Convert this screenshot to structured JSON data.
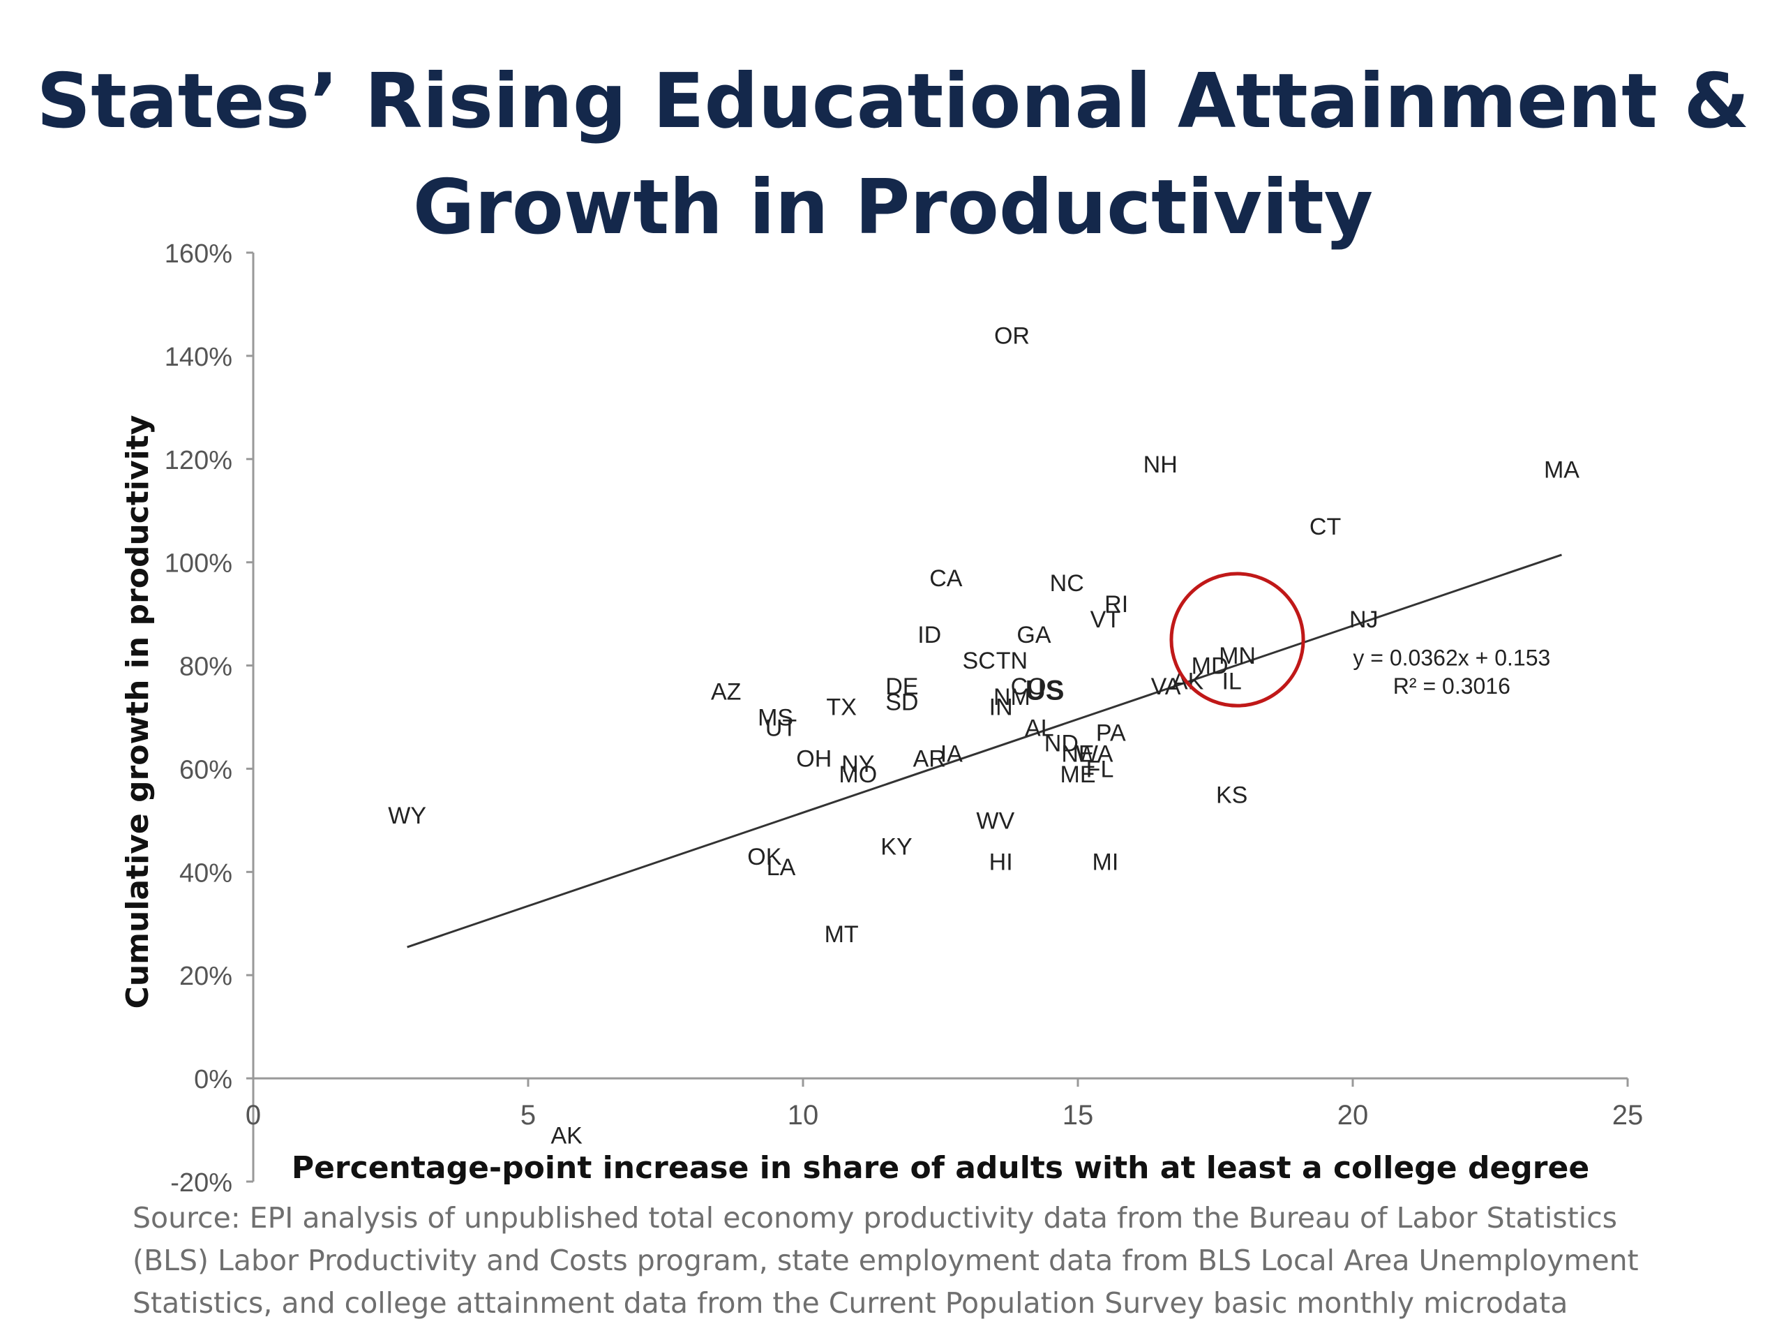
{
  "chart_data": {
    "type": "scatter",
    "title": "States’ Rising Educational Attainment & Growth in Productivity",
    "title_lines": [
      "States’ Rising Educational Attainment &",
      "Growth in Productivity"
    ],
    "xlabel": "Percentage-point increase in share of adults with at least a college degree",
    "ylabel": "Cumulative growth in productivity",
    "xlim": [
      0,
      25
    ],
    "ylim": [
      -0.2,
      1.6
    ],
    "x_ticks": [
      {
        "value": 0,
        "label": "0"
      },
      {
        "value": 5,
        "label": "5"
      },
      {
        "value": 10,
        "label": "10"
      },
      {
        "value": 15,
        "label": "15"
      },
      {
        "value": 20,
        "label": "20"
      },
      {
        "value": 25,
        "label": "25"
      }
    ],
    "y_ticks": [
      {
        "value": -0.2,
        "label": "-20%"
      },
      {
        "value": 0,
        "label": "0%"
      },
      {
        "value": 0.2,
        "label": "20%"
      },
      {
        "value": 0.4,
        "label": "40%"
      },
      {
        "value": 0.6,
        "label": "60%"
      },
      {
        "value": 0.8,
        "label": "80%"
      },
      {
        "value": 1.0,
        "label": "100%"
      },
      {
        "value": 1.2,
        "label": "120%"
      },
      {
        "value": 1.4,
        "label": "140%"
      },
      {
        "value": 1.6,
        "label": "160%"
      }
    ],
    "grid": false,
    "points": [
      {
        "label": "OR",
        "x": 13.8,
        "y": 1.44
      },
      {
        "label": "NH",
        "x": 16.5,
        "y": 1.19
      },
      {
        "label": "MA",
        "x": 23.8,
        "y": 1.18
      },
      {
        "label": "CT",
        "x": 19.5,
        "y": 1.07
      },
      {
        "label": "CA",
        "x": 12.6,
        "y": 0.97
      },
      {
        "label": "NC",
        "x": 14.8,
        "y": 0.96
      },
      {
        "label": "RI",
        "x": 15.7,
        "y": 0.92
      },
      {
        "label": "VT",
        "x": 15.5,
        "y": 0.89
      },
      {
        "label": "NJ",
        "x": 20.2,
        "y": 0.89
      },
      {
        "label": "ID",
        "x": 12.3,
        "y": 0.86
      },
      {
        "label": "GA",
        "x": 14.2,
        "y": 0.86
      },
      {
        "label": "SC",
        "x": 13.2,
        "y": 0.81
      },
      {
        "label": "TN",
        "x": 13.8,
        "y": 0.81
      },
      {
        "label": "MN",
        "x": 17.9,
        "y": 0.82
      },
      {
        "label": "MD",
        "x": 17.4,
        "y": 0.8
      },
      {
        "label": "AZ",
        "x": 8.6,
        "y": 0.75
      },
      {
        "label": "DE",
        "x": 11.8,
        "y": 0.76
      },
      {
        "label": "CO",
        "x": 14.1,
        "y": 0.76
      },
      {
        "label": "US",
        "x": 14.4,
        "y": 0.75
      },
      {
        "label": "VA",
        "x": 16.6,
        "y": 0.76
      },
      {
        "label": "AK",
        "x": 17.0,
        "y": 0.77
      },
      {
        "label": "IL",
        "x": 17.8,
        "y": 0.77
      },
      {
        "label": "TX",
        "x": 10.7,
        "y": 0.72
      },
      {
        "label": "SD",
        "x": 11.8,
        "y": 0.73
      },
      {
        "label": "NM",
        "x": 13.8,
        "y": 0.74
      },
      {
        "label": "IN",
        "x": 13.6,
        "y": 0.72
      },
      {
        "label": "MS",
        "x": 9.5,
        "y": 0.7
      },
      {
        "label": "UT",
        "x": 9.6,
        "y": 0.68
      },
      {
        "label": "AL",
        "x": 14.3,
        "y": 0.68
      },
      {
        "label": "PA",
        "x": 15.6,
        "y": 0.67
      },
      {
        "label": "ND",
        "x": 14.7,
        "y": 0.65
      },
      {
        "label": "NE",
        "x": 15.0,
        "y": 0.63
      },
      {
        "label": "WA",
        "x": 15.3,
        "y": 0.63
      },
      {
        "label": "IA",
        "x": 12.7,
        "y": 0.63
      },
      {
        "label": "AR",
        "x": 12.3,
        "y": 0.62
      },
      {
        "label": "OH",
        "x": 10.2,
        "y": 0.62
      },
      {
        "label": "NY",
        "x": 11.0,
        "y": 0.61
      },
      {
        "label": "MO",
        "x": 11.0,
        "y": 0.59
      },
      {
        "label": "FL",
        "x": 15.4,
        "y": 0.6
      },
      {
        "label": "ME",
        "x": 15.0,
        "y": 0.59
      },
      {
        "label": "KS",
        "x": 17.8,
        "y": 0.55
      },
      {
        "label": "WY",
        "x": 2.8,
        "y": 0.51
      },
      {
        "label": "WV",
        "x": 13.5,
        "y": 0.5
      },
      {
        "label": "KY",
        "x": 11.7,
        "y": 0.45
      },
      {
        "label": "OK",
        "x": 9.3,
        "y": 0.43
      },
      {
        "label": "LA",
        "x": 9.6,
        "y": 0.41
      },
      {
        "label": "HI",
        "x": 13.6,
        "y": 0.42
      },
      {
        "label": "MI",
        "x": 15.5,
        "y": 0.42
      },
      {
        "label": "MT",
        "x": 10.7,
        "y": 0.28
      },
      {
        "label": "AK",
        "x": 5.7,
        "y": -0.11
      }
    ],
    "trendline": {
      "slope": 0.0362,
      "intercept": 0.153,
      "x_range": [
        2.8,
        23.8
      ],
      "equation": "y = 0.0362x + 0.153",
      "r_squared": "R² = 0.3016"
    },
    "highlight_circle": {
      "cx": 17.9,
      "cy": 0.85,
      "r": 1.2
    },
    "colors": {
      "title": "#14284b",
      "text": "#222222",
      "axis": "#999999",
      "trendline": "#333333",
      "circle": "#c01818",
      "source": "#6f6f6f"
    }
  },
  "source": {
    "lines": [
      "Source: EPI analysis of unpublished total economy productivity data from the Bureau of Labor Statistics",
      "(BLS) Labor Productivity and Costs program, state employment data from BLS Local Area Unemployment",
      "Statistics, and college attainment data from the Current Population Survey basic monthly microdata"
    ]
  }
}
